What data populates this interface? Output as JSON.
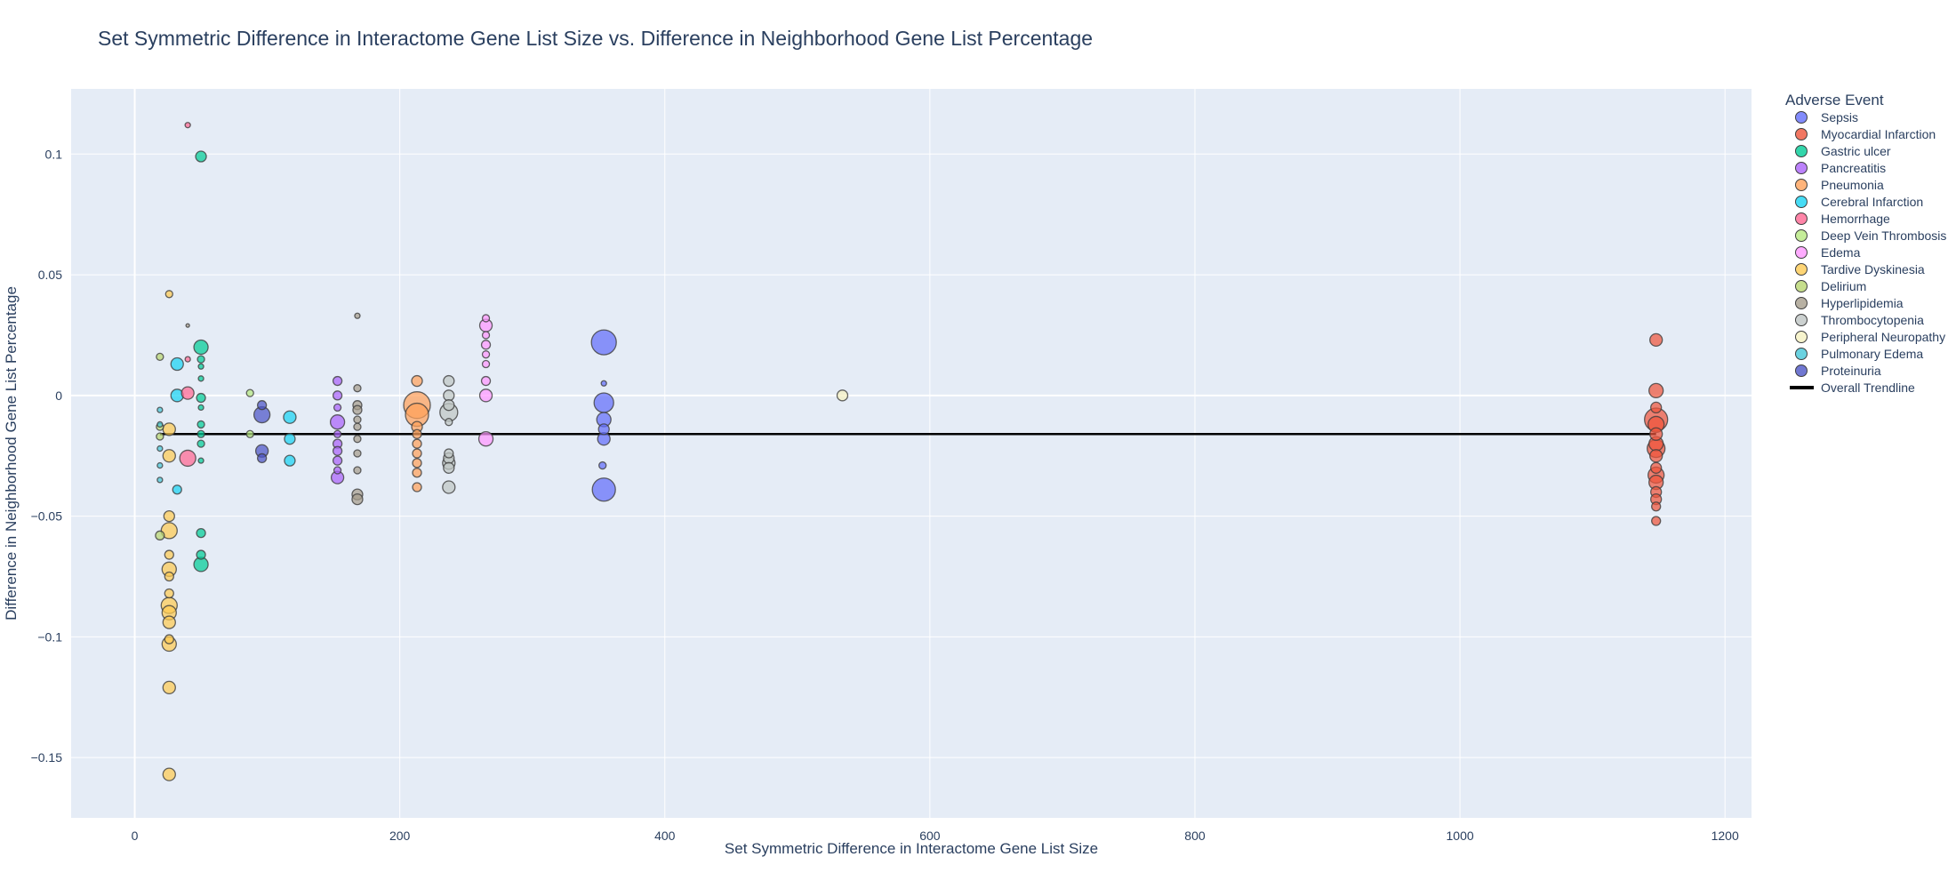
{
  "chart_data": {
    "type": "scatter",
    "title": "Set Symmetric Difference in Interactome Gene List Size  vs. Difference in Neighborhood Gene List Percentage",
    "xlabel": "Set Symmetric Difference in Interactome Gene List Size",
    "ylabel": "Difference in Neighborhood Gene List Percentage",
    "xlim": [
      -48,
      1220
    ],
    "ylim": [
      -0.175,
      0.127
    ],
    "x_ticks": [
      0,
      200,
      400,
      600,
      800,
      1000,
      1200
    ],
    "x_tick_labels": [
      "0",
      "200",
      "400",
      "600",
      "800",
      "1000",
      "1200"
    ],
    "y_ticks": [
      -0.15,
      -0.1,
      -0.05,
      0,
      0.05,
      0.1
    ],
    "y_tick_labels": [
      "−0.15",
      "−0.1",
      "−0.05",
      "0",
      "0.05",
      "0.1"
    ],
    "grid": true,
    "legend_title": "Adverse Event",
    "legend_position": "right",
    "series": [
      {
        "name": "Sepsis",
        "color": "#636efa",
        "points": [
          [
            354,
            0.022,
            14
          ],
          [
            354,
            -0.039,
            13
          ],
          [
            354,
            -0.003,
            11
          ],
          [
            354,
            -0.01,
            8
          ],
          [
            354,
            -0.018,
            7
          ],
          [
            354,
            0.005,
            3
          ],
          [
            353,
            -0.029,
            4
          ],
          [
            354,
            -0.014,
            6
          ]
        ]
      },
      {
        "name": "Myocardial Infarction",
        "color": "#EF553B",
        "points": [
          [
            1148,
            0.023,
            7
          ],
          [
            1148,
            0.002,
            8
          ],
          [
            1148,
            -0.005,
            6
          ],
          [
            1148,
            -0.01,
            13
          ],
          [
            1148,
            -0.012,
            9
          ],
          [
            1148,
            -0.016,
            7
          ],
          [
            1148,
            -0.02,
            8
          ],
          [
            1148,
            -0.022,
            10
          ],
          [
            1148,
            -0.025,
            7
          ],
          [
            1148,
            -0.03,
            6
          ],
          [
            1148,
            -0.033,
            9
          ],
          [
            1148,
            -0.036,
            8
          ],
          [
            1148,
            -0.04,
            6
          ],
          [
            1148,
            -0.043,
            6
          ],
          [
            1148,
            -0.046,
            5
          ],
          [
            1148,
            -0.052,
            5
          ]
        ]
      },
      {
        "name": "Gastric ulcer",
        "color": "#00cc96",
        "points": [
          [
            50,
            0.099,
            6
          ],
          [
            50,
            0.02,
            8
          ],
          [
            50,
            0.015,
            4
          ],
          [
            50,
            0.012,
            3
          ],
          [
            50,
            0.007,
            3
          ],
          [
            50,
            -0.001,
            5
          ],
          [
            50,
            -0.005,
            3
          ],
          [
            50,
            -0.012,
            4
          ],
          [
            50,
            -0.016,
            4
          ],
          [
            50,
            -0.02,
            4
          ],
          [
            50,
            -0.027,
            3
          ],
          [
            50,
            -0.057,
            5
          ],
          [
            50,
            -0.066,
            5
          ],
          [
            50,
            -0.07,
            8
          ]
        ]
      },
      {
        "name": "Pancreatitis",
        "color": "#ab63fa",
        "points": [
          [
            153,
            0.006,
            5
          ],
          [
            153,
            0.0,
            5
          ],
          [
            153,
            -0.005,
            4
          ],
          [
            153,
            -0.011,
            8
          ],
          [
            153,
            -0.016,
            4
          ],
          [
            153,
            -0.02,
            5
          ],
          [
            153,
            -0.023,
            5
          ],
          [
            153,
            -0.027,
            5
          ],
          [
            153,
            -0.031,
            4
          ],
          [
            153,
            -0.034,
            7
          ]
        ]
      },
      {
        "name": "Pneumonia",
        "color": "#FFA15A",
        "points": [
          [
            213,
            0.006,
            6
          ],
          [
            213,
            -0.004,
            15
          ],
          [
            213,
            -0.008,
            13
          ],
          [
            213,
            -0.013,
            6
          ],
          [
            213,
            -0.016,
            5
          ],
          [
            213,
            -0.02,
            5
          ],
          [
            213,
            -0.024,
            5
          ],
          [
            213,
            -0.028,
            5
          ],
          [
            213,
            -0.032,
            5
          ],
          [
            213,
            -0.038,
            5
          ]
        ]
      },
      {
        "name": "Cerebral Infarction",
        "color": "#19d3f3",
        "points": [
          [
            32,
            0.013,
            7
          ],
          [
            32,
            0.0,
            7
          ],
          [
            32,
            -0.039,
            5
          ],
          [
            117,
            -0.009,
            7
          ],
          [
            117,
            -0.018,
            6
          ],
          [
            117,
            -0.027,
            6
          ]
        ]
      },
      {
        "name": "Hemorrhage",
        "color": "#FF6692",
        "points": [
          [
            40,
            0.112,
            3
          ],
          [
            40,
            0.001,
            7
          ],
          [
            40,
            -0.026,
            9
          ],
          [
            40,
            0.015,
            3
          ]
        ]
      },
      {
        "name": "Deep Vein Thrombosis",
        "color": "#B6E880",
        "points": [
          [
            87,
            0.001,
            4
          ],
          [
            87,
            -0.016,
            4
          ]
        ]
      },
      {
        "name": "Edema",
        "color": "#FF97FF",
        "points": [
          [
            265,
            0.032,
            4
          ],
          [
            265,
            0.029,
            7
          ],
          [
            265,
            0.025,
            4
          ],
          [
            265,
            0.021,
            5
          ],
          [
            265,
            0.017,
            4
          ],
          [
            265,
            0.013,
            4
          ],
          [
            265,
            0.006,
            5
          ],
          [
            265,
            0.0,
            7
          ],
          [
            265,
            -0.018,
            8
          ]
        ]
      },
      {
        "name": "Tardive Dyskinesia",
        "color": "#FECB52",
        "points": [
          [
            26,
            0.042,
            4
          ],
          [
            26,
            -0.014,
            7
          ],
          [
            26,
            -0.025,
            7
          ],
          [
            26,
            -0.05,
            6
          ],
          [
            26,
            -0.056,
            9
          ],
          [
            26,
            -0.066,
            5
          ],
          [
            26,
            -0.072,
            8
          ],
          [
            26,
            -0.075,
            5
          ],
          [
            26,
            -0.082,
            5
          ],
          [
            26,
            -0.087,
            9
          ],
          [
            26,
            -0.09,
            8
          ],
          [
            26,
            -0.094,
            7
          ],
          [
            26,
            -0.101,
            5
          ],
          [
            26,
            -0.103,
            8
          ],
          [
            26,
            -0.121,
            7
          ],
          [
            26,
            -0.157,
            7
          ]
        ]
      },
      {
        "name": "Delirium",
        "color": "#B8D66F",
        "points": [
          [
            19,
            0.016,
            4
          ],
          [
            19,
            -0.017,
            4
          ],
          [
            19,
            -0.058,
            5
          ],
          [
            19,
            -0.013,
            4
          ]
        ]
      },
      {
        "name": "Hyperlipidemia",
        "color": "#A69D8C",
        "points": [
          [
            168,
            0.033,
            3
          ],
          [
            168,
            0.003,
            4
          ],
          [
            168,
            -0.004,
            5
          ],
          [
            168,
            -0.006,
            5
          ],
          [
            168,
            -0.01,
            4
          ],
          [
            168,
            -0.013,
            4
          ],
          [
            168,
            -0.018,
            4
          ],
          [
            168,
            -0.024,
            4
          ],
          [
            168,
            -0.031,
            4
          ],
          [
            168,
            -0.041,
            6
          ],
          [
            168,
            -0.043,
            6
          ],
          [
            40,
            0.029,
            2
          ]
        ]
      },
      {
        "name": "Thrombocytopenia",
        "color": "#BFC6C4",
        "points": [
          [
            237,
            0.006,
            6
          ],
          [
            237,
            0.0,
            6
          ],
          [
            237,
            -0.004,
            6
          ],
          [
            237,
            -0.007,
            10
          ],
          [
            237,
            -0.011,
            4
          ],
          [
            237,
            -0.024,
            5
          ],
          [
            237,
            -0.026,
            6
          ],
          [
            237,
            -0.028,
            7
          ],
          [
            237,
            -0.03,
            6
          ],
          [
            237,
            -0.038,
            7
          ]
        ]
      },
      {
        "name": "Peripheral Neuropathy",
        "color": "#F5F1C0",
        "points": [
          [
            534,
            0.0,
            6
          ]
        ]
      },
      {
        "name": "Pulmonary Edema",
        "color": "#46C7D8",
        "points": [
          [
            19,
            -0.006,
            3
          ],
          [
            19,
            -0.012,
            3
          ],
          [
            19,
            -0.022,
            3
          ],
          [
            19,
            -0.029,
            3
          ],
          [
            19,
            -0.035,
            3
          ]
        ]
      },
      {
        "name": "Proteinuria",
        "color": "#4C55C6",
        "points": [
          [
            96,
            -0.004,
            5
          ],
          [
            96,
            -0.008,
            9
          ],
          [
            96,
            -0.023,
            7
          ],
          [
            96,
            -0.026,
            5
          ]
        ]
      }
    ],
    "trendline": {
      "name": "Overall Trendline",
      "color": "#000000",
      "x": [
        19,
        1148
      ],
      "y": [
        -0.016,
        -0.016
      ]
    }
  }
}
